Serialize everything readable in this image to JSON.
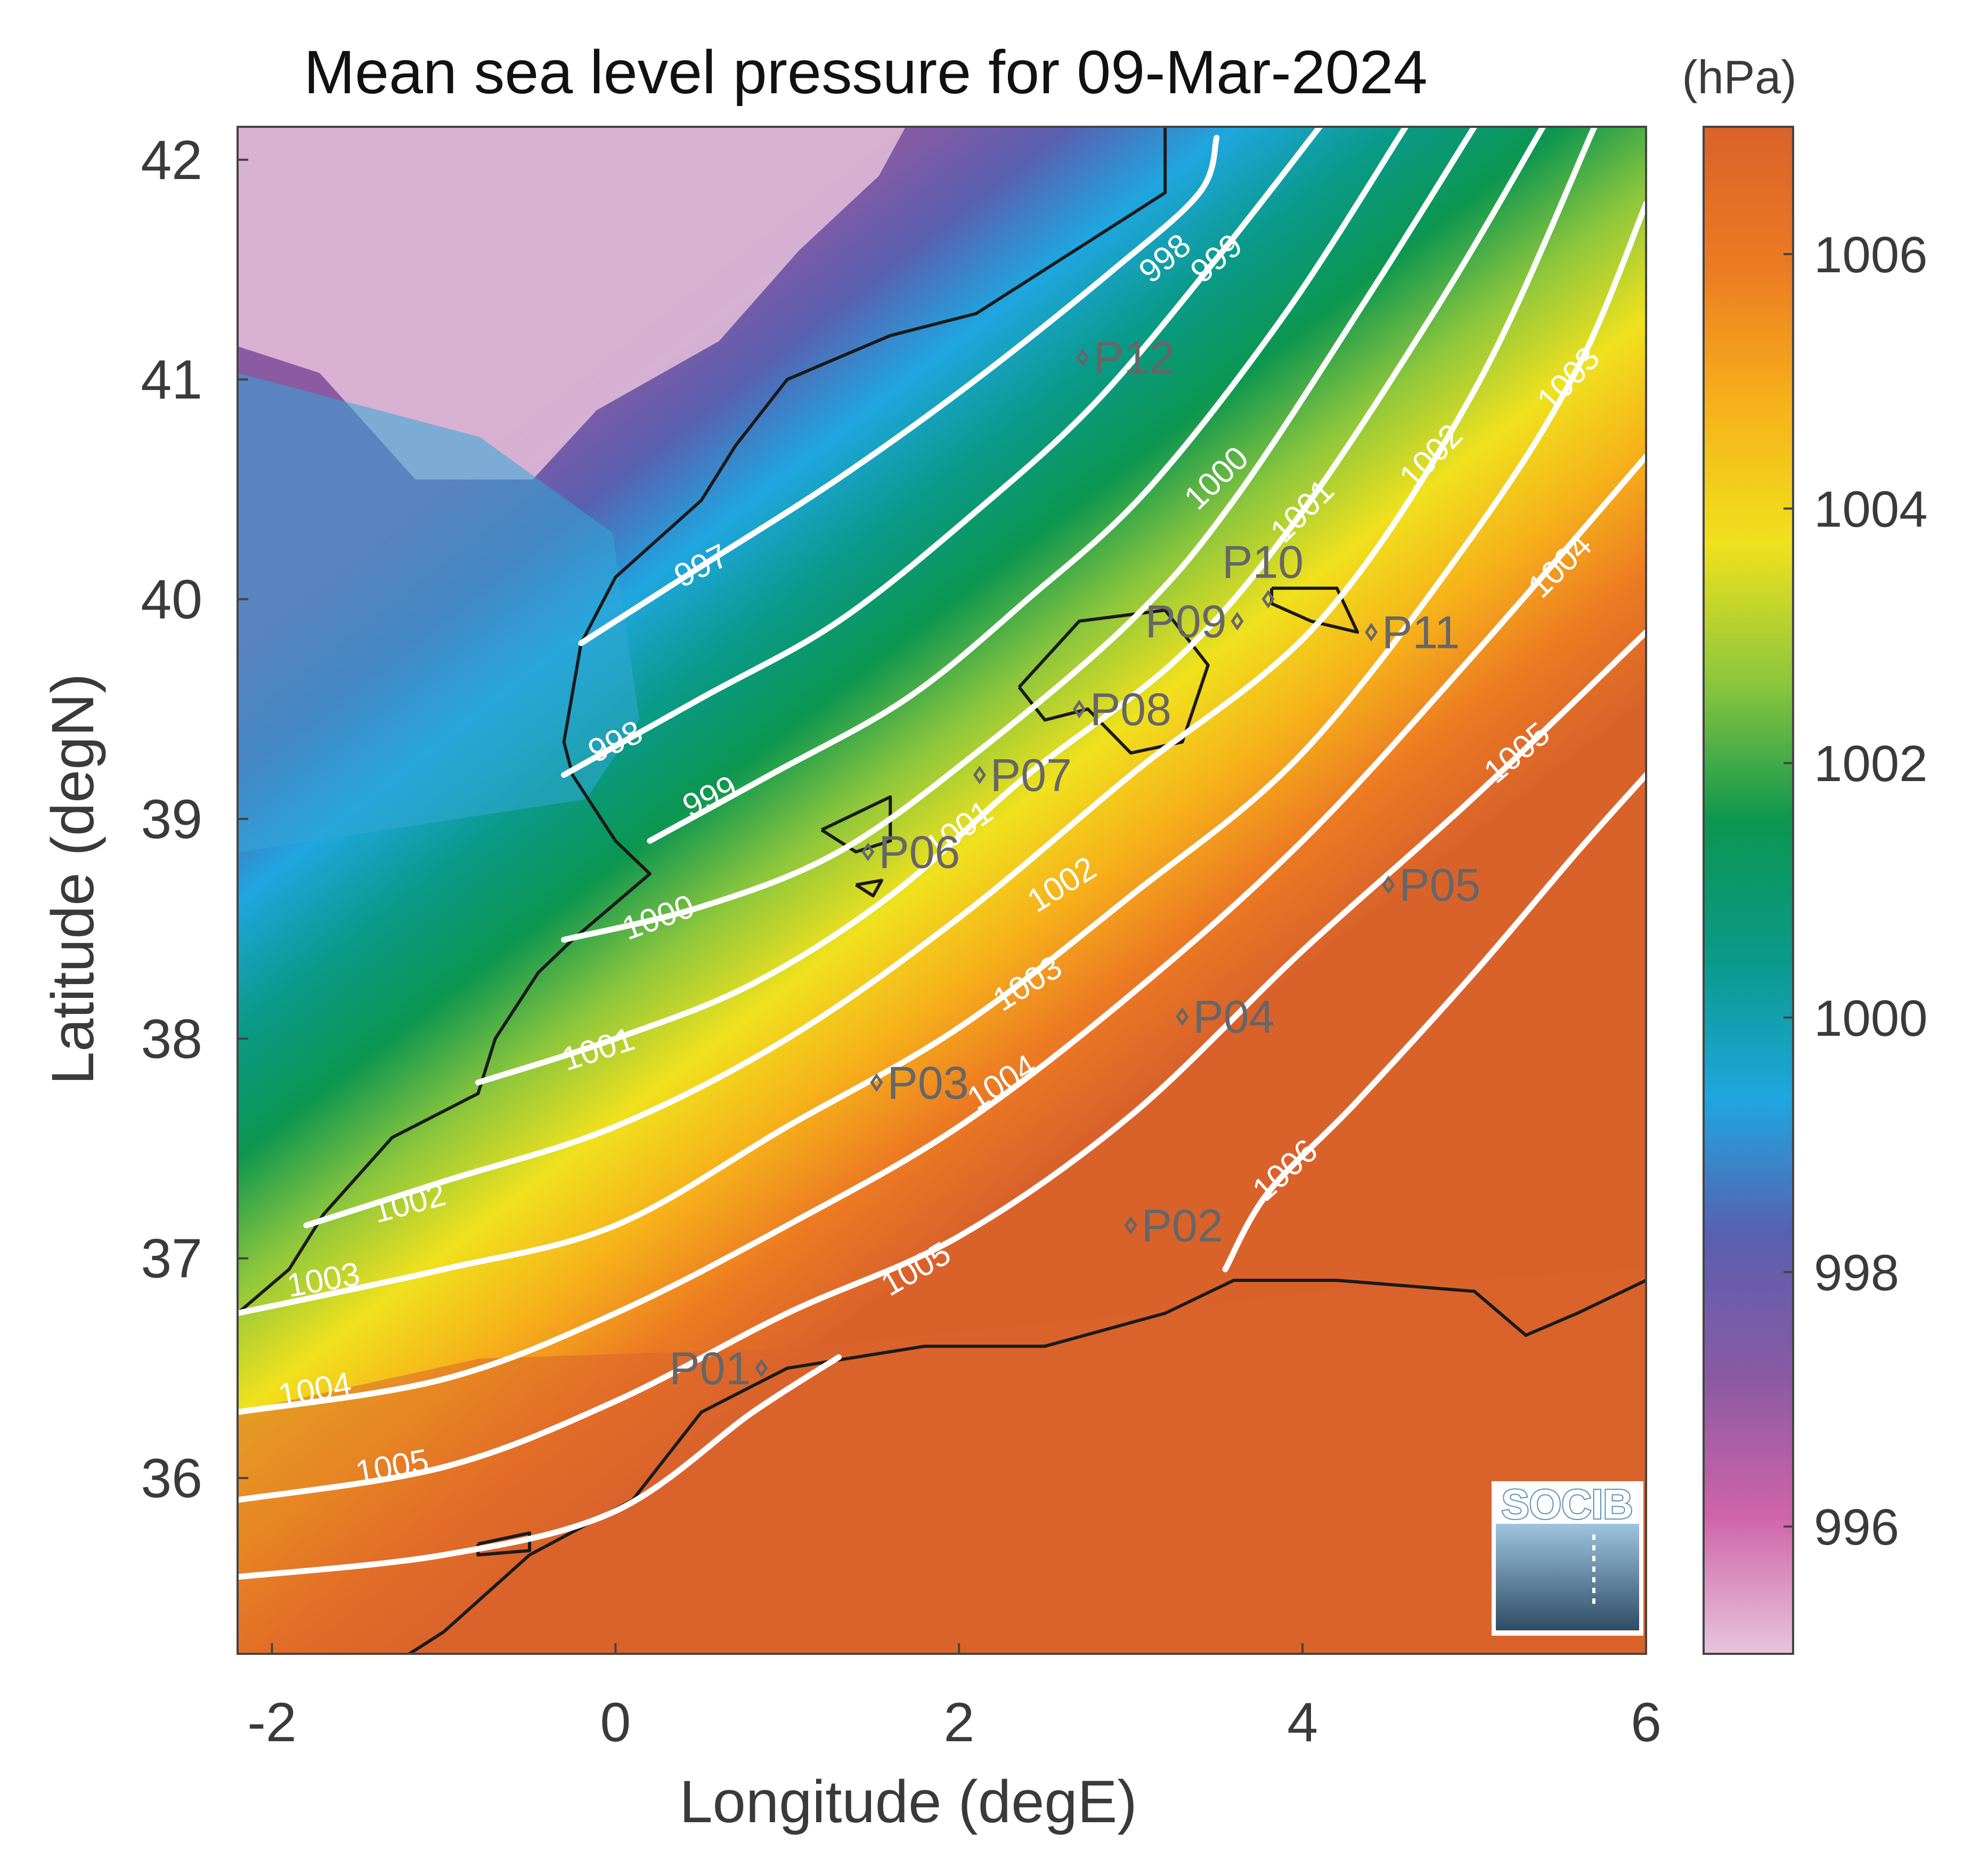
{
  "title": "Mean sea level pressure for 09-Mar-2024",
  "xlabel": "Longitude (degE)",
  "ylabel": "Latitude (degN)",
  "colorbar": {
    "unit": "(hPa)",
    "range": [
      995,
      1007
    ],
    "ticks": [
      "996",
      "998",
      "1000",
      "1002",
      "1004",
      "1006"
    ],
    "colormap": [
      "#e8c4dc",
      "#cf63a8",
      "#8a5aa3",
      "#5a5fb0",
      "#1fa6e0",
      "#0a9a8a",
      "#0c9650",
      "#8cc63c",
      "#f0e11d",
      "#f6b11a",
      "#ec7a22",
      "#d9622b"
    ]
  },
  "logo": "SOCIB",
  "chart_data": {
    "type": "heatmap",
    "variable": "mean sea level pressure",
    "units": "hPa",
    "xlim": [
      -2.2,
      6.0
    ],
    "ylim": [
      35.2,
      42.15
    ],
    "x_ticks": [
      "-2",
      "0",
      "2",
      "4",
      "6"
    ],
    "y_ticks": [
      "36",
      "37",
      "38",
      "39",
      "40",
      "41",
      "42"
    ],
    "contour_levels": [
      997,
      998,
      999,
      1000,
      1001,
      1002,
      1003,
      1004,
      1005,
      1006
    ],
    "contours": [
      {
        "level": 997,
        "label": "997",
        "points": [
          [
            -0.2,
            39.8
          ],
          [
            0.5,
            40.15
          ],
          [
            1.3,
            40.55
          ],
          [
            2.1,
            41.0
          ],
          [
            2.9,
            41.5
          ],
          [
            3.4,
            41.85
          ],
          [
            3.5,
            42.1
          ]
        ]
      },
      {
        "level": 998,
        "label": "998",
        "points": [
          [
            -0.3,
            39.2
          ],
          [
            0.5,
            39.55
          ],
          [
            1.3,
            39.9
          ],
          [
            2.1,
            40.4
          ],
          [
            2.8,
            40.9
          ],
          [
            3.5,
            41.55
          ],
          [
            4.1,
            42.15
          ]
        ]
      },
      {
        "level": 999,
        "label": "999",
        "points": [
          [
            0.2,
            38.9
          ],
          [
            0.9,
            39.2
          ],
          [
            1.7,
            39.55
          ],
          [
            2.4,
            40.0
          ],
          [
            3.1,
            40.5
          ],
          [
            3.9,
            41.3
          ],
          [
            4.6,
            42.15
          ]
        ]
      },
      {
        "level": 1000,
        "label": "1000",
        "points": [
          [
            -0.3,
            38.45
          ],
          [
            0.5,
            38.6
          ],
          [
            1.3,
            38.85
          ],
          [
            2.1,
            39.3
          ],
          [
            3.0,
            39.9
          ],
          [
            3.6,
            40.45
          ],
          [
            4.4,
            41.4
          ],
          [
            5.0,
            42.15
          ]
        ]
      },
      {
        "level": 1001,
        "label": "1001",
        "points": [
          [
            -0.8,
            37.8
          ],
          [
            0.0,
            38.0
          ],
          [
            0.8,
            38.25
          ],
          [
            1.6,
            38.65
          ],
          [
            2.4,
            39.2
          ],
          [
            3.3,
            39.75
          ],
          [
            4.0,
            40.4
          ],
          [
            4.8,
            41.35
          ],
          [
            5.4,
            42.15
          ]
        ]
      },
      {
        "level": 1002,
        "label": "1002",
        "points": [
          [
            -1.8,
            37.15
          ],
          [
            -1.0,
            37.35
          ],
          [
            0.0,
            37.6
          ],
          [
            1.0,
            38.0
          ],
          [
            2.0,
            38.55
          ],
          [
            3.0,
            39.2
          ],
          [
            4.1,
            39.9
          ],
          [
            5.0,
            40.95
          ],
          [
            5.7,
            42.15
          ]
        ]
      },
      {
        "level": 1003,
        "label": "1003",
        "points": [
          [
            -2.2,
            36.75
          ],
          [
            -1.0,
            36.95
          ],
          [
            0.0,
            37.15
          ],
          [
            1.0,
            37.6
          ],
          [
            2.0,
            38.05
          ],
          [
            3.0,
            38.65
          ],
          [
            4.0,
            39.3
          ],
          [
            5.0,
            40.3
          ],
          [
            5.6,
            41.05
          ],
          [
            6.0,
            41.8
          ]
        ]
      },
      {
        "level": 1004,
        "label": "1004",
        "points": [
          [
            -2.2,
            36.3
          ],
          [
            -1.0,
            36.45
          ],
          [
            0.0,
            36.75
          ],
          [
            1.0,
            37.15
          ],
          [
            2.0,
            37.6
          ],
          [
            3.0,
            38.2
          ],
          [
            4.0,
            38.9
          ],
          [
            5.0,
            39.75
          ],
          [
            6.0,
            40.65
          ]
        ]
      },
      {
        "level": 1005,
        "label": "1005",
        "points": [
          [
            -2.2,
            35.9
          ],
          [
            -1.0,
            36.05
          ],
          [
            0.0,
            36.35
          ],
          [
            1.0,
            36.75
          ],
          [
            2.0,
            37.1
          ],
          [
            3.0,
            37.65
          ],
          [
            4.0,
            38.4
          ],
          [
            5.0,
            39.1
          ],
          [
            6.0,
            39.85
          ]
        ]
      },
      {
        "level": 1006,
        "label": "1006",
        "points": [
          [
            -2.2,
            35.55
          ],
          [
            -1.0,
            35.65
          ],
          [
            0.0,
            35.85
          ],
          [
            0.8,
            36.3
          ],
          [
            1.3,
            36.55
          ]
        ]
      },
      {
        "level": 1006,
        "label": "1006",
        "points": [
          [
            3.55,
            36.95
          ],
          [
            3.8,
            37.3
          ],
          [
            4.3,
            37.7
          ],
          [
            5.0,
            38.3
          ],
          [
            5.6,
            38.85
          ],
          [
            6.0,
            39.2
          ]
        ]
      }
    ],
    "contour_labels": [
      {
        "text": "997",
        "lon": 0.5,
        "lat": 40.15,
        "angle": -27
      },
      {
        "text": "998",
        "lon": 3.2,
        "lat": 41.55,
        "angle": -40
      },
      {
        "text": "999",
        "lon": 3.5,
        "lat": 41.55,
        "angle": -40
      },
      {
        "text": "1000",
        "lon": 3.5,
        "lat": 40.55,
        "angle": -44
      },
      {
        "text": "1001",
        "lon": 4.0,
        "lat": 40.4,
        "angle": -45
      },
      {
        "text": "1002",
        "lon": 4.75,
        "lat": 40.65,
        "angle": -46
      },
      {
        "text": "1003",
        "lon": 5.55,
        "lat": 41.0,
        "angle": -47
      },
      {
        "text": "1004",
        "lon": 5.5,
        "lat": 40.15,
        "angle": -45
      },
      {
        "text": "998",
        "lon": 0.0,
        "lat": 39.35,
        "angle": -25
      },
      {
        "text": "999",
        "lon": 0.55,
        "lat": 39.1,
        "angle": -25
      },
      {
        "text": "1000",
        "lon": 0.25,
        "lat": 38.55,
        "angle": -20
      },
      {
        "text": "1001",
        "lon": 2.0,
        "lat": 38.95,
        "angle": -35
      },
      {
        "text": "1001",
        "lon": -0.1,
        "lat": 37.95,
        "angle": -18
      },
      {
        "text": "1002",
        "lon": 2.6,
        "lat": 38.7,
        "angle": -32
      },
      {
        "text": "1002",
        "lon": -1.2,
        "lat": 37.25,
        "angle": -15
      },
      {
        "text": "1003",
        "lon": 2.4,
        "lat": 38.25,
        "angle": -32
      },
      {
        "text": "1003",
        "lon": -1.7,
        "lat": 36.9,
        "angle": -10
      },
      {
        "text": "1004",
        "lon": 2.25,
        "lat": 37.8,
        "angle": -32
      },
      {
        "text": "1004",
        "lon": -1.75,
        "lat": 36.4,
        "angle": -10
      },
      {
        "text": "1005",
        "lon": 5.25,
        "lat": 39.3,
        "angle": -40
      },
      {
        "text": "1005",
        "lon": 1.75,
        "lat": 36.95,
        "angle": -30
      },
      {
        "text": "1005",
        "lon": -1.3,
        "lat": 36.05,
        "angle": -10
      },
      {
        "text": "1006",
        "lon": 3.9,
        "lat": 37.4,
        "angle": -42
      }
    ],
    "stations": [
      {
        "name": "P01",
        "lon": 0.85,
        "lat": 36.5,
        "label_side": "left"
      },
      {
        "name": "P02",
        "lon": 3.0,
        "lat": 37.15,
        "label_side": "right"
      },
      {
        "name": "P03",
        "lon": 1.52,
        "lat": 37.8,
        "label_side": "right"
      },
      {
        "name": "P04",
        "lon": 3.3,
        "lat": 38.1,
        "label_side": "right"
      },
      {
        "name": "P05",
        "lon": 4.5,
        "lat": 38.7,
        "label_side": "right"
      },
      {
        "name": "P06",
        "lon": 1.47,
        "lat": 38.85,
        "label_side": "right"
      },
      {
        "name": "P07",
        "lon": 2.12,
        "lat": 39.2,
        "label_side": "right"
      },
      {
        "name": "P08",
        "lon": 2.7,
        "lat": 39.5,
        "label_side": "right"
      },
      {
        "name": "P09",
        "lon": 3.62,
        "lat": 39.9,
        "label_side": "left"
      },
      {
        "name": "P10",
        "lon": 3.8,
        "lat": 40.0,
        "label_side": "above"
      },
      {
        "name": "P11",
        "lon": 4.4,
        "lat": 39.85,
        "label_side": "right"
      },
      {
        "name": "P12",
        "lon": 2.72,
        "lat": 41.1,
        "label_side": "right"
      }
    ]
  }
}
